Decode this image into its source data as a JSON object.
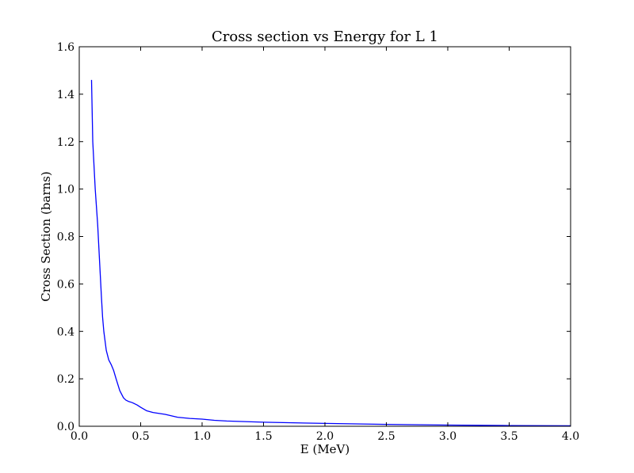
{
  "colors": {
    "series": "#0000ff",
    "axes": "#000000",
    "background": "#ffffff"
  },
  "chart_data": {
    "type": "line",
    "title": "Cross section vs Energy for L 1",
    "xlabel": "E (MeV)",
    "ylabel": "Cross Section (barns)",
    "xlim": [
      0.0,
      4.0
    ],
    "ylim": [
      0.0,
      1.6
    ],
    "grid": false,
    "legend": "none",
    "x_ticks": [
      0.0,
      0.5,
      1.0,
      1.5,
      2.0,
      2.5,
      3.0,
      3.5,
      4.0
    ],
    "x_tick_labels": [
      "0.0",
      "0.5",
      "1.0",
      "1.5",
      "2.0",
      "2.5",
      "3.0",
      "3.5",
      "4.0"
    ],
    "y_ticks": [
      0.0,
      0.2,
      0.4,
      0.6,
      0.8,
      1.0,
      1.2,
      1.4,
      1.6
    ],
    "y_tick_labels": [
      "0.0",
      "0.2",
      "0.4",
      "0.6",
      "0.8",
      "1.0",
      "1.2",
      "1.4",
      "1.6"
    ],
    "series": [
      {
        "x": [
          0.1,
          0.11,
          0.13,
          0.15,
          0.17,
          0.18,
          0.19,
          0.2,
          0.22,
          0.24,
          0.26,
          0.28,
          0.3,
          0.33,
          0.36,
          0.38,
          0.4,
          0.43,
          0.47,
          0.5,
          0.55,
          0.6,
          0.7,
          0.8,
          0.9,
          1.0,
          1.1,
          1.2,
          1.5,
          2.0,
          2.5,
          3.0,
          3.5,
          4.0
        ],
        "y": [
          1.46,
          1.2,
          1.0,
          0.85,
          0.65,
          0.55,
          0.46,
          0.4,
          0.32,
          0.28,
          0.26,
          0.235,
          0.2,
          0.15,
          0.12,
          0.11,
          0.105,
          0.1,
          0.09,
          0.08,
          0.065,
          0.058,
          0.05,
          0.038,
          0.033,
          0.03,
          0.025,
          0.022,
          0.017,
          0.012,
          0.008,
          0.005,
          0.003,
          0.002
        ]
      }
    ]
  }
}
